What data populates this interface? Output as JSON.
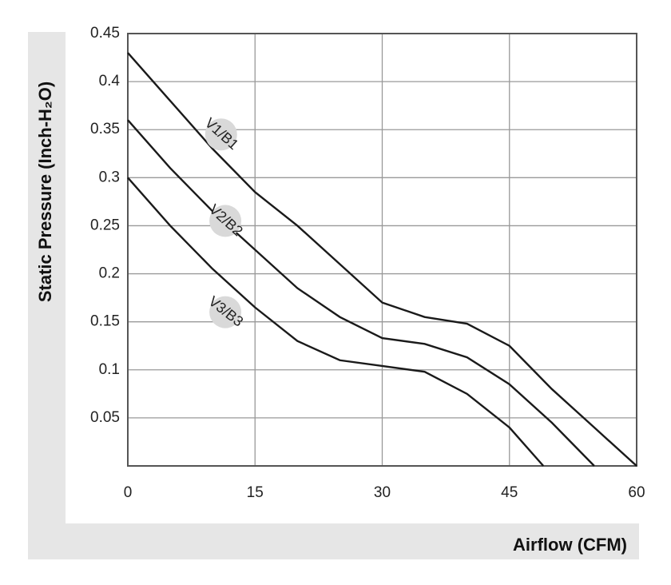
{
  "chart_data": {
    "type": "line",
    "xlabel": "Airflow (CFM)",
    "ylabel": "Static Pressure (Inch-H₂O)",
    "xlim": [
      0,
      60
    ],
    "xticks": [
      0,
      15,
      30,
      45,
      60
    ],
    "ylim": [
      0,
      0.45
    ],
    "yticks": [
      0.05,
      0.1,
      0.15,
      0.2,
      0.25,
      0.3,
      0.35,
      0.4,
      0.45
    ],
    "grid": true,
    "series": [
      {
        "name": "V1/B1",
        "color": "#1a1a1a",
        "x": [
          0,
          5,
          10,
          15,
          20,
          25,
          30,
          35,
          40,
          45,
          50,
          55,
          60
        ],
        "values": [
          0.43,
          0.38,
          0.33,
          0.285,
          0.25,
          0.21,
          0.17,
          0.155,
          0.148,
          0.125,
          0.08,
          0.04,
          0
        ]
      },
      {
        "name": "V2/B2",
        "color": "#1a1a1a",
        "x": [
          0,
          5,
          10,
          15,
          20,
          25,
          30,
          35,
          40,
          45,
          50,
          55
        ],
        "values": [
          0.36,
          0.31,
          0.265,
          0.225,
          0.185,
          0.155,
          0.133,
          0.127,
          0.113,
          0.085,
          0.045,
          0
        ]
      },
      {
        "name": "V3/B3",
        "color": "#1a1a1a",
        "x": [
          0,
          5,
          10,
          15,
          20,
          25,
          30,
          35,
          40,
          45,
          49
        ],
        "values": [
          0.3,
          0.25,
          0.205,
          0.165,
          0.13,
          0.11,
          0.104,
          0.098,
          0.075,
          0.04,
          0
        ]
      }
    ]
  }
}
